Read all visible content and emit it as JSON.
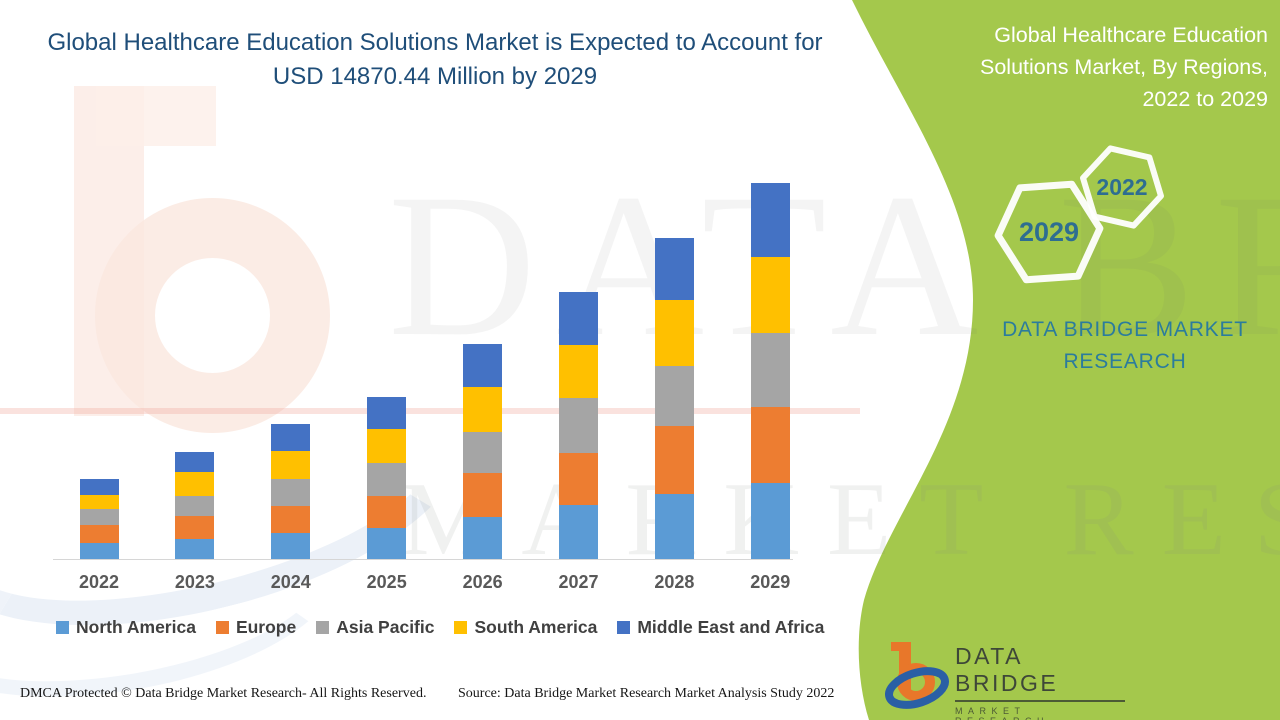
{
  "main_title": "Global Healthcare Education Solutions Market is Expected to Account for USD 14870.44 Million by 2029",
  "chart_data": {
    "type": "bar",
    "stacked": true,
    "unit": "USD Million",
    "title": "Global Healthcare Education Solutions Market is Expected to Account for USD 14870.44 Million by 2029",
    "xlabel": "",
    "ylabel": "",
    "y_axis_visible": false,
    "grid": false,
    "legend_position": "bottom",
    "categories": [
      "2022",
      "2023",
      "2024",
      "2025",
      "2026",
      "2027",
      "2028",
      "2029"
    ],
    "series": [
      {
        "name": "North America",
        "color": "#5B9BD5",
        "values": [
          630,
          790,
          1030,
          1225,
          1660,
          2135,
          2570,
          3005
        ]
      },
      {
        "name": "Europe",
        "color": "#ED7D31",
        "values": [
          710,
          910,
          1070,
          1265,
          1740,
          2055,
          2690,
          3005
        ]
      },
      {
        "name": "Asia Pacific",
        "color": "#A5A5A5",
        "values": [
          630,
          790,
          1070,
          1305,
          1620,
          2175,
          2375,
          2925
        ]
      },
      {
        "name": "South America",
        "color": "#FFC000",
        "values": [
          565,
          950,
          1105,
          1345,
          1780,
          2095,
          2610,
          3010
        ]
      },
      {
        "name": "Middle East and Africa",
        "color": "#4472C4",
        "values": [
          630,
          790,
          1070,
          1265,
          1700,
          2095,
          2450,
          2925.44
        ]
      }
    ],
    "totals_estimated": [
      3165,
      4230,
      5345,
      6405,
      8500,
      10555,
      12695,
      14870.44
    ],
    "final_total_label": "USD 14870.44 Million by 2029"
  },
  "right_panel": {
    "title": "Global Healthcare Education Solutions Market, By Regions, 2022 to 2029",
    "hexagon_small": "2022",
    "hexagon_large": "2029",
    "brand_line1": "DATA BRIDGE MARKET",
    "brand_line2": "RESEARCH",
    "background_color": "#A4C84C",
    "year_text_color": "#2E6E91"
  },
  "logo": {
    "name": "DATA BRIDGE",
    "subtitle": "MARKET RESEARCH"
  },
  "footer": {
    "left": "DMCA Protected © Data Bridge Market Research- All Rights Reserved.",
    "source": "Source: Data Bridge Market Research Market Analysis Study 2022"
  },
  "watermarks": {
    "top_text": "DATA BRIDGE",
    "bottom_text": "MARKET RESEARCH"
  },
  "colors": {
    "title_navy": "#1F4E79",
    "axis_label_gray": "#595959",
    "legend_text": "#404040",
    "panel_green": "#A4C84C",
    "teal_brand": "#2B7C9D"
  }
}
